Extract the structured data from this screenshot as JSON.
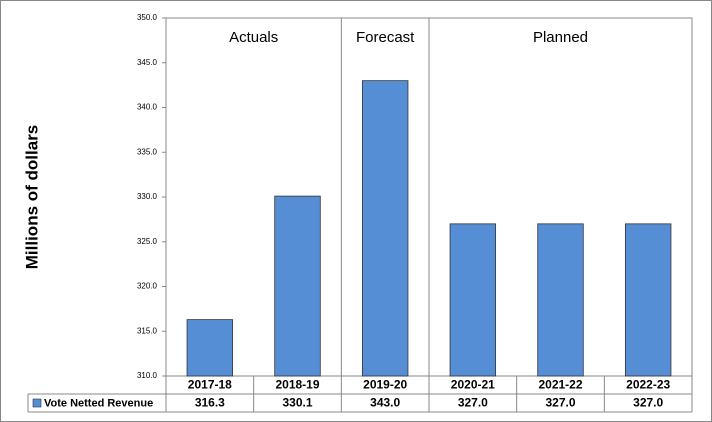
{
  "chart_data": {
    "type": "bar",
    "y_label": "Millions of dollars",
    "categories": [
      "2017-18",
      "2018-19",
      "2019-20",
      "2020-21",
      "2021-22",
      "2022-23"
    ],
    "series": [
      {
        "name": "Vote Netted Revenue",
        "color": "#558ed5",
        "values": [
          316.3,
          330.1,
          343.0,
          327.0,
          327.0,
          327.0
        ],
        "value_labels": [
          "316.3",
          "330.1",
          "343.0",
          "327.0",
          "327.0",
          "327.0"
        ]
      }
    ],
    "ylim": [
      310,
      350
    ],
    "yticks": [
      {
        "value": 310,
        "label": "310.0"
      },
      {
        "value": 315,
        "label": "315.0"
      },
      {
        "value": 320,
        "label": "320.0"
      },
      {
        "value": 325,
        "label": "325.0"
      },
      {
        "value": 330,
        "label": "330.0"
      },
      {
        "value": 335,
        "label": "335.0"
      },
      {
        "value": 340,
        "label": "340.0"
      },
      {
        "value": 345,
        "label": "345.0"
      },
      {
        "value": 350,
        "label": "350.0"
      }
    ],
    "sections": [
      {
        "label": "Actuals",
        "span": 2
      },
      {
        "label": "Forecast",
        "span": 1
      },
      {
        "label": "Planned",
        "span": 3
      }
    ]
  }
}
